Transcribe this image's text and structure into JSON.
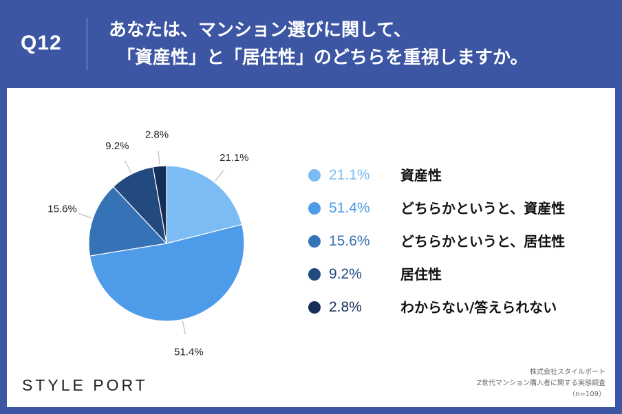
{
  "header": {
    "question_number": "Q12",
    "question_line1": "あなたは、マンション選びに関して、",
    "question_line2": "「資産性」と「居住性」のどちらを重視しますか。"
  },
  "chart_data": {
    "type": "pie",
    "slices": [
      {
        "label": "資産性",
        "value": 21.1,
        "display": "21.1%",
        "color": "#7cbcf4"
      },
      {
        "label": "どちらかというと、資産性",
        "value": 51.4,
        "display": "51.4%",
        "color": "#4e9bea"
      },
      {
        "label": "どちらかというと、居住性",
        "value": 15.6,
        "display": "15.6%",
        "color": "#3672b6"
      },
      {
        "label": "居住性",
        "value": 9.2,
        "display": "9.2%",
        "color": "#224a7e"
      },
      {
        "label": "わからない/答えられない",
        "value": 2.8,
        "display": "2.8%",
        "color": "#172f57"
      }
    ]
  },
  "footer": {
    "logo": "STYLE PORT",
    "source_line1": "株式会社スタイルポート",
    "source_line2": "Z世代マンション購入者に関する実態調査",
    "source_line3": "（n=109）"
  }
}
